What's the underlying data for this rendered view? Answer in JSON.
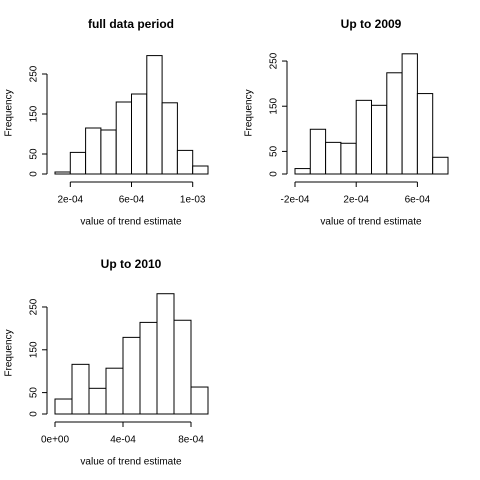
{
  "chart_data": [
    {
      "type": "histogram",
      "title": "full data period",
      "xlabel": "value of trend estimate",
      "ylabel": "Frequency",
      "bins": [
        0.0001,
        0.0002,
        0.0003,
        0.0004,
        0.0005,
        0.0006,
        0.0007,
        0.0008,
        0.0009,
        0.001,
        0.0011
      ],
      "values": [
        5,
        54,
        115,
        110,
        180,
        200,
        296,
        178,
        59,
        20
      ],
      "xlim": [
        0.0001,
        0.0011
      ],
      "xticks": [
        {
          "value": 0.0002,
          "label": "2e-04"
        },
        {
          "value": 0.0006,
          "label": "6e-04"
        },
        {
          "value": 0.001,
          "label": "1e-03"
        }
      ],
      "ylim": [
        0,
        305
      ],
      "yticks": [
        0,
        50,
        150,
        250
      ],
      "color": "#ffffff"
    },
    {
      "type": "histogram",
      "title": "Up to 2009",
      "xlabel": "value of trend estimate",
      "ylabel": "Frequency",
      "bins": [
        -0.0002,
        -0.0001,
        0,
        0.0001,
        0.0002,
        0.0003,
        0.0004,
        0.0005,
        0.0006,
        0.0007,
        0.0008
      ],
      "values": [
        12,
        99,
        70,
        68,
        163,
        152,
        224,
        266,
        178,
        37
      ],
      "xlim": [
        -0.0002,
        0.0008
      ],
      "xticks": [
        {
          "value": -0.0002,
          "label": "-2e-04"
        },
        {
          "value": 0.0002,
          "label": "2e-04"
        },
        {
          "value": 0.0006,
          "label": "6e-04"
        }
      ],
      "ylim": [
        0,
        270
      ],
      "yticks": [
        0,
        50,
        150,
        250
      ],
      "color": "#ffffff"
    },
    {
      "type": "histogram",
      "title": "Up to 2010",
      "xlabel": "value of trend estimate",
      "ylabel": "Frequency",
      "bins": [
        0,
        0.0001,
        0.0002,
        0.0003,
        0.0004,
        0.0005,
        0.0006,
        0.0007,
        0.0008,
        0.0009
      ],
      "values": [
        35,
        116,
        60,
        107,
        179,
        214,
        281,
        219,
        63
      ],
      "xlim": [
        0,
        0.0009
      ],
      "xticks": [
        {
          "value": 0,
          "label": "0e+00"
        },
        {
          "value": 0.0004,
          "label": "4e-04"
        },
        {
          "value": 0.0008,
          "label": "8e-04"
        }
      ],
      "ylim": [
        0,
        285
      ],
      "yticks": [
        0,
        50,
        150,
        250
      ],
      "color": "#ffffff"
    }
  ]
}
